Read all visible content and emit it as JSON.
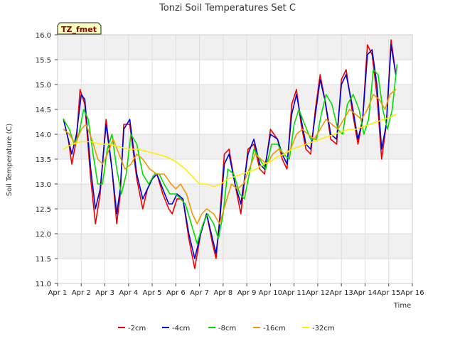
{
  "chart_data": {
    "type": "line",
    "title": "Tonzi Soil Temperatures Set C",
    "xlabel": "Time",
    "ylabel": "Soil Temperature (C)",
    "site_label": "TZ_fmet",
    "xlim": [
      1,
      16
    ],
    "ylim": [
      11.0,
      16.0
    ],
    "x_ticks": [
      1,
      2,
      3,
      4,
      5,
      6,
      7,
      8,
      9,
      10,
      11,
      12,
      13,
      14,
      15,
      16
    ],
    "x_tick_labels": [
      "Apr 1",
      "Apr 2",
      "Apr 3",
      "Apr 4",
      "Apr 5",
      "Apr 6",
      "Apr 7",
      "Apr 8",
      "Apr 9",
      "Apr 10",
      "Apr 11",
      "Apr 12",
      "Apr 13",
      "Apr 14",
      "Apr 15",
      "Apr 16"
    ],
    "y_ticks": [
      11.0,
      11.5,
      12.0,
      12.5,
      13.0,
      13.5,
      14.0,
      14.5,
      15.0,
      15.5,
      16.0
    ],
    "y_tick_labels": [
      "11.0",
      "11.5",
      "12.0",
      "12.5",
      "13.0",
      "13.5",
      "14.0",
      "14.5",
      "15.0",
      "15.5",
      "16.0"
    ],
    "grid": true,
    "legend_position": "bottom",
    "series": [
      {
        "name": "-2cm",
        "color": "#ee0000",
        "x": [
          1.25,
          1.45,
          1.6,
          1.8,
          1.95,
          2.15,
          2.4,
          2.6,
          2.8,
          3.05,
          3.3,
          3.5,
          3.65,
          3.8,
          4.05,
          4.35,
          4.6,
          4.8,
          5.0,
          5.2,
          5.45,
          5.7,
          5.85,
          6.05,
          6.3,
          6.55,
          6.8,
          7.05,
          7.3,
          7.55,
          7.7,
          7.85,
          8.05,
          8.25,
          8.5,
          8.75,
          9.05,
          9.3,
          9.55,
          9.75,
          10.0,
          10.3,
          10.5,
          10.7,
          10.9,
          11.1,
          11.3,
          11.5,
          11.7,
          11.9,
          12.1,
          12.3,
          12.55,
          12.8,
          13.0,
          13.2,
          13.45,
          13.7,
          13.9,
          14.1,
          14.3,
          14.5,
          14.7,
          14.9,
          15.1,
          15.3
        ],
        "values": [
          14.3,
          13.9,
          13.4,
          13.9,
          14.9,
          14.6,
          13.1,
          12.2,
          12.8,
          14.3,
          13.3,
          12.2,
          12.8,
          14.2,
          14.2,
          13.1,
          12.5,
          12.9,
          13.1,
          13.2,
          12.8,
          12.5,
          12.4,
          12.7,
          12.7,
          11.9,
          11.3,
          12.0,
          12.4,
          11.8,
          11.5,
          12.3,
          13.6,
          13.7,
          13.0,
          12.4,
          13.7,
          13.8,
          13.3,
          13.2,
          14.1,
          13.9,
          13.5,
          13.3,
          14.6,
          14.9,
          14.2,
          13.7,
          13.6,
          14.5,
          15.2,
          14.7,
          13.9,
          13.8,
          15.1,
          15.3,
          14.5,
          13.8,
          14.3,
          15.8,
          15.6,
          14.8,
          13.5,
          14.2,
          15.9,
          15.2
        ]
      },
      {
        "name": "-4cm",
        "color": "#0000cc",
        "x": [
          1.25,
          1.45,
          1.6,
          1.8,
          2.0,
          2.15,
          2.4,
          2.6,
          2.8,
          3.05,
          3.3,
          3.5,
          3.65,
          3.8,
          4.05,
          4.35,
          4.6,
          4.8,
          5.0,
          5.2,
          5.45,
          5.7,
          5.85,
          6.05,
          6.3,
          6.55,
          6.8,
          7.05,
          7.3,
          7.55,
          7.7,
          7.85,
          8.05,
          8.25,
          8.5,
          8.75,
          9.05,
          9.3,
          9.55,
          9.75,
          10.0,
          10.3,
          10.5,
          10.7,
          10.9,
          11.1,
          11.3,
          11.5,
          11.7,
          11.9,
          12.1,
          12.3,
          12.55,
          12.8,
          13.0,
          13.2,
          13.45,
          13.7,
          13.9,
          14.1,
          14.3,
          14.5,
          14.7,
          14.9,
          15.1,
          15.3
        ],
        "values": [
          14.3,
          13.9,
          13.6,
          14.0,
          14.8,
          14.7,
          13.3,
          12.5,
          12.9,
          14.2,
          13.3,
          12.4,
          12.9,
          14.1,
          14.3,
          13.2,
          12.7,
          12.9,
          13.1,
          13.2,
          12.9,
          12.6,
          12.6,
          12.8,
          12.7,
          12.0,
          11.5,
          12.0,
          12.4,
          11.9,
          11.6,
          12.2,
          13.4,
          13.6,
          13.0,
          12.6,
          13.6,
          13.9,
          13.4,
          13.3,
          14.0,
          13.9,
          13.6,
          13.4,
          14.4,
          14.8,
          14.3,
          13.8,
          13.7,
          14.4,
          15.1,
          14.7,
          14.0,
          13.9,
          15.0,
          15.2,
          14.6,
          13.9,
          14.3,
          15.6,
          15.7,
          15.0,
          13.7,
          14.2,
          15.8,
          15.2
        ]
      },
      {
        "name": "-8cm",
        "color": "#00dd00",
        "x": [
          1.25,
          1.5,
          1.7,
          1.9,
          2.1,
          2.3,
          2.5,
          2.7,
          2.9,
          3.1,
          3.3,
          3.5,
          3.7,
          3.9,
          4.1,
          4.35,
          4.6,
          4.85,
          5.1,
          5.3,
          5.5,
          5.75,
          6.0,
          6.2,
          6.4,
          6.65,
          6.9,
          7.15,
          7.35,
          7.6,
          7.8,
          8.0,
          8.2,
          8.45,
          8.7,
          8.9,
          9.1,
          9.3,
          9.55,
          9.8,
          10.05,
          10.3,
          10.55,
          10.8,
          11.0,
          11.2,
          11.45,
          11.7,
          11.95,
          12.15,
          12.35,
          12.6,
          12.85,
          13.05,
          13.25,
          13.5,
          13.75,
          13.95,
          14.15,
          14.35,
          14.55,
          14.75,
          14.95,
          15.15,
          15.35
        ],
        "values": [
          14.3,
          14.1,
          13.8,
          14.0,
          14.5,
          14.3,
          13.6,
          13.0,
          13.0,
          13.7,
          14.0,
          13.3,
          12.8,
          13.2,
          14.0,
          13.8,
          13.2,
          13.0,
          13.2,
          13.2,
          13.0,
          12.8,
          12.8,
          12.7,
          12.6,
          12.2,
          11.8,
          12.2,
          12.4,
          12.2,
          11.9,
          12.4,
          13.3,
          13.2,
          12.8,
          12.7,
          13.2,
          13.7,
          13.5,
          13.3,
          13.8,
          13.8,
          13.6,
          13.5,
          14.2,
          14.5,
          14.2,
          13.9,
          13.9,
          14.4,
          14.8,
          14.6,
          14.1,
          14.0,
          14.6,
          14.8,
          14.5,
          14.0,
          14.3,
          15.3,
          15.2,
          14.5,
          14.1,
          14.5,
          15.4
        ]
      },
      {
        "name": "-16cm",
        "color": "#ee9900",
        "x": [
          1.25,
          1.5,
          1.75,
          2.0,
          2.2,
          2.45,
          2.7,
          2.9,
          3.1,
          3.35,
          3.6,
          3.85,
          4.1,
          4.35,
          4.6,
          4.9,
          5.2,
          5.5,
          5.8,
          6.0,
          6.2,
          6.45,
          6.7,
          6.9,
          7.1,
          7.3,
          7.6,
          7.85,
          8.1,
          8.35,
          8.6,
          8.85,
          9.1,
          9.35,
          9.6,
          9.85,
          10.1,
          10.35,
          10.6,
          10.85,
          11.1,
          11.35,
          11.6,
          11.85,
          12.1,
          12.35,
          12.6,
          12.85,
          13.1,
          13.35,
          13.6,
          13.85,
          14.1,
          14.35,
          14.6,
          14.85,
          15.05,
          15.3
        ],
        "values": [
          14.1,
          14.0,
          13.8,
          14.1,
          14.2,
          13.9,
          13.5,
          13.4,
          13.6,
          13.9,
          13.6,
          13.3,
          13.4,
          13.6,
          13.5,
          13.3,
          13.2,
          13.2,
          13.0,
          12.9,
          13.0,
          12.8,
          12.4,
          12.2,
          12.4,
          12.5,
          12.4,
          12.2,
          12.6,
          13.0,
          12.9,
          13.0,
          13.3,
          13.6,
          13.5,
          13.4,
          13.6,
          13.7,
          13.6,
          13.7,
          14.0,
          14.1,
          14.0,
          13.9,
          14.1,
          14.3,
          14.2,
          14.1,
          14.3,
          14.5,
          14.4,
          14.3,
          14.5,
          14.8,
          14.7,
          14.5,
          14.8,
          14.9
        ]
      },
      {
        "name": "-32cm",
        "color": "#ffee00",
        "x": [
          1.25,
          1.6,
          2.0,
          2.4,
          2.8,
          3.2,
          3.6,
          4.0,
          4.4,
          4.8,
          5.2,
          5.6,
          6.0,
          6.4,
          6.8,
          7.0,
          7.3,
          7.6,
          7.9,
          8.2,
          8.5,
          8.8,
          9.1,
          9.4,
          9.7,
          10.0,
          10.3,
          10.6,
          10.9,
          11.2,
          11.5,
          11.8,
          12.1,
          12.4,
          12.7,
          13.0,
          13.3,
          13.6,
          13.9,
          14.2,
          14.5,
          14.8,
          15.1,
          15.3
        ],
        "values": [
          13.7,
          13.8,
          13.85,
          13.85,
          13.8,
          13.8,
          13.75,
          13.7,
          13.7,
          13.65,
          13.6,
          13.55,
          13.45,
          13.3,
          13.1,
          13.0,
          13.0,
          12.95,
          13.0,
          13.1,
          13.15,
          13.2,
          13.25,
          13.3,
          13.4,
          13.45,
          13.55,
          13.6,
          13.7,
          13.75,
          13.8,
          13.85,
          13.9,
          13.95,
          14.0,
          14.05,
          14.1,
          14.1,
          14.15,
          14.2,
          14.25,
          14.3,
          14.35,
          14.4
        ]
      }
    ]
  }
}
